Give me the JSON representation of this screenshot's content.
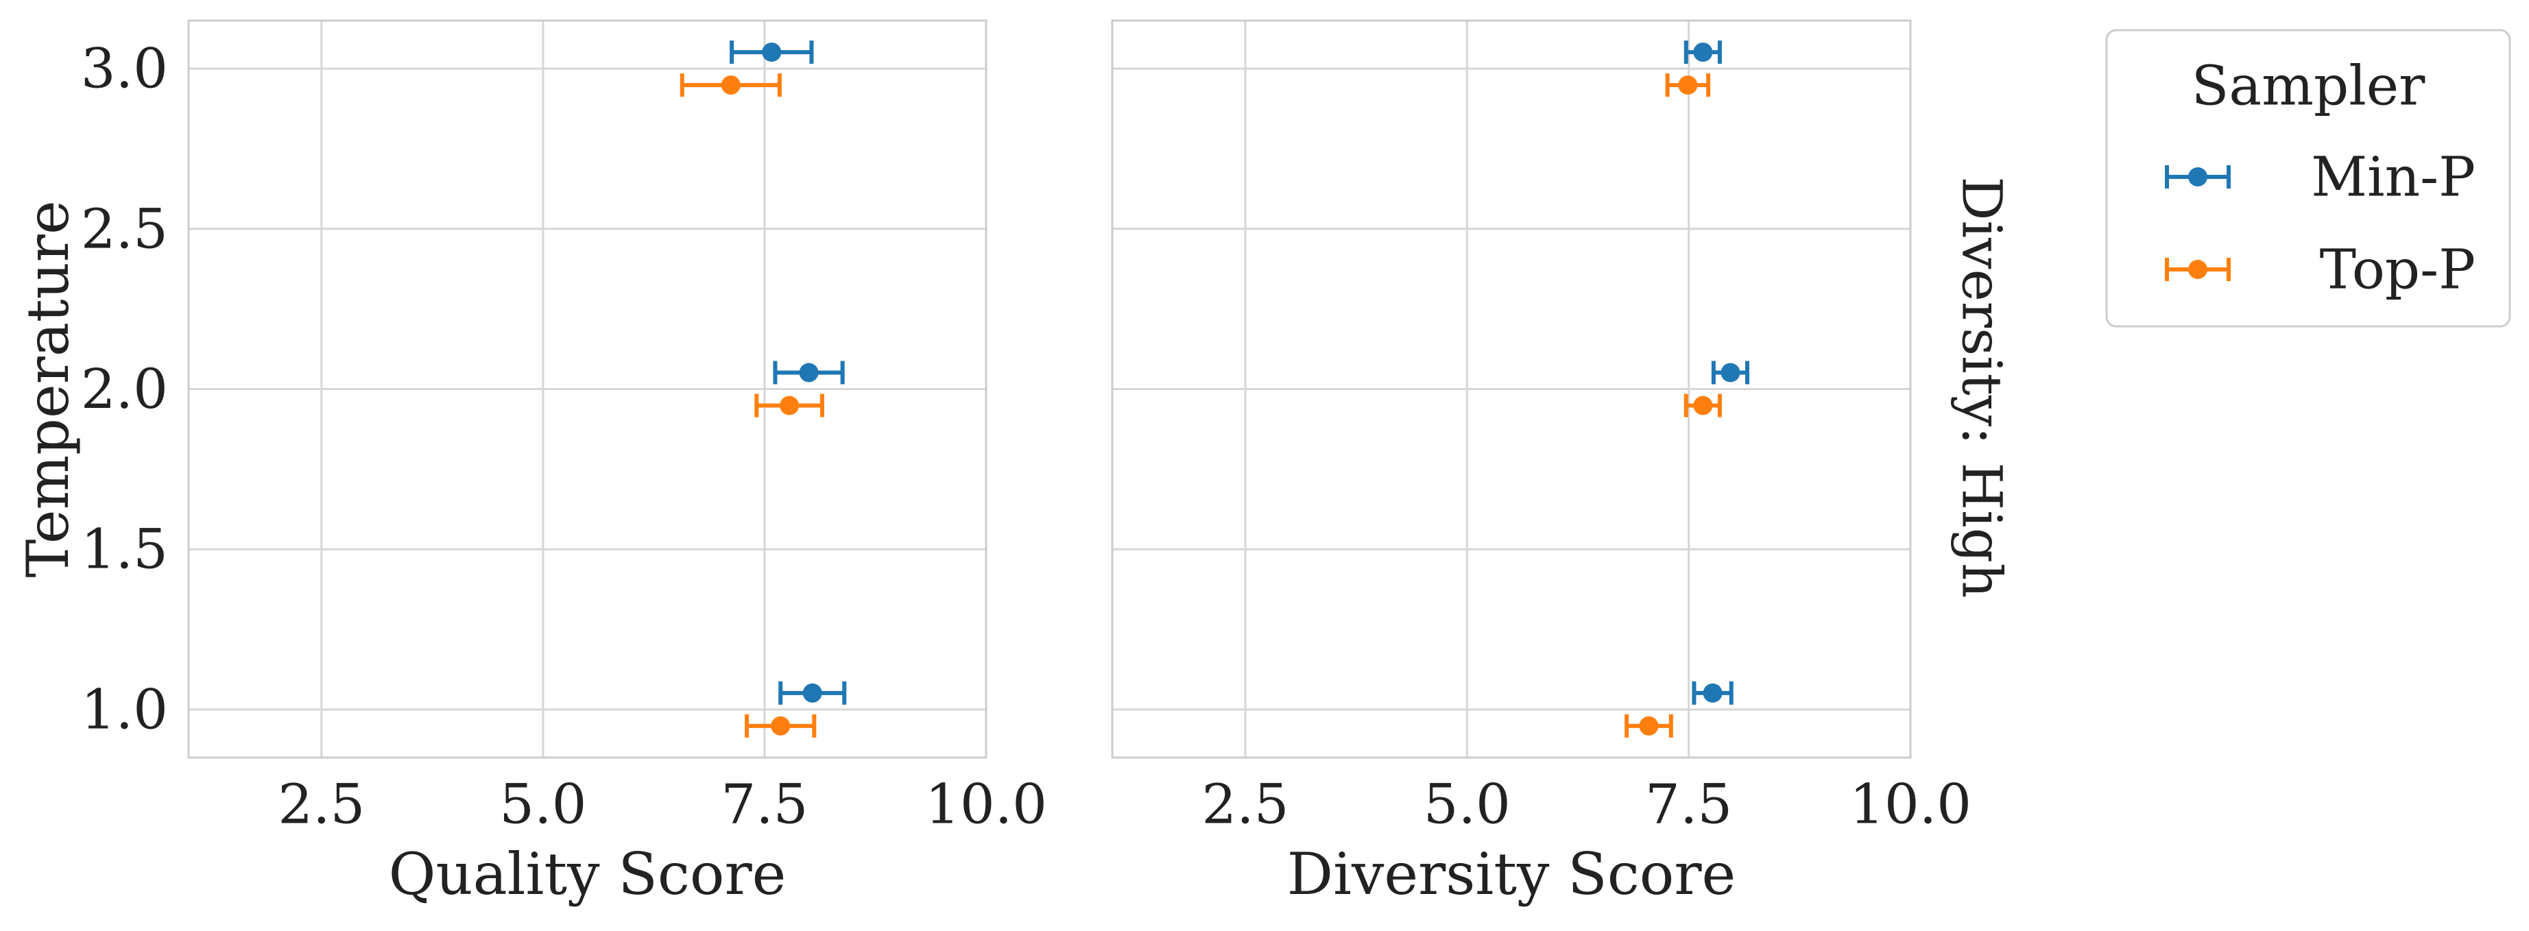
{
  "chart_data": [
    {
      "type": "scatter",
      "panel": "left",
      "xlabel": "Quality Score",
      "ylabel": "Temperature",
      "xlim": [
        1.0,
        10.0
      ],
      "ylim": [
        0.85,
        3.15
      ],
      "xticks": [
        2.5,
        5.0,
        7.5,
        10.0
      ],
      "xtick_labels": [
        "2.5",
        "5.0",
        "7.5",
        "10.0"
      ],
      "yticks": [
        1.0,
        1.5,
        2.0,
        2.5,
        3.0
      ],
      "ytick_labels": [
        "1.0",
        "1.5",
        "2.0",
        "2.5",
        "3.0"
      ],
      "grid": true,
      "series": [
        {
          "name": "Min-P",
          "color": "#1f77b4",
          "points": [
            {
              "y": 3.0,
              "x": 7.58,
              "err": 0.45
            },
            {
              "y": 2.0,
              "x": 8.0,
              "err": 0.38
            },
            {
              "y": 1.0,
              "x": 8.04,
              "err": 0.36
            }
          ]
        },
        {
          "name": "Top-P",
          "color": "#ff7f0e",
          "points": [
            {
              "y": 3.0,
              "x": 7.12,
              "err": 0.55
            },
            {
              "y": 2.0,
              "x": 7.78,
              "err": 0.37
            },
            {
              "y": 1.0,
              "x": 7.68,
              "err": 0.38
            }
          ]
        }
      ]
    },
    {
      "type": "scatter",
      "panel": "right",
      "xlabel": "Diversity Score",
      "ylabel": "",
      "facet_label": "Diversity: High",
      "xlim": [
        1.0,
        10.0
      ],
      "ylim": [
        0.85,
        3.15
      ],
      "xticks": [
        2.5,
        5.0,
        7.5,
        10.0
      ],
      "xtick_labels": [
        "2.5",
        "5.0",
        "7.5",
        "10.0"
      ],
      "yticks": [
        1.0,
        1.5,
        2.0,
        2.5,
        3.0
      ],
      "grid": true,
      "series": [
        {
          "name": "Min-P",
          "color": "#1f77b4",
          "points": [
            {
              "y": 3.0,
              "x": 7.66,
              "err": 0.19
            },
            {
              "y": 2.0,
              "x": 7.97,
              "err": 0.19
            },
            {
              "y": 1.0,
              "x": 7.77,
              "err": 0.21
            }
          ]
        },
        {
          "name": "Top-P",
          "color": "#ff7f0e",
          "points": [
            {
              "y": 3.0,
              "x": 7.49,
              "err": 0.23
            },
            {
              "y": 2.0,
              "x": 7.66,
              "err": 0.19
            },
            {
              "y": 1.0,
              "x": 7.05,
              "err": 0.25
            }
          ]
        }
      ]
    }
  ],
  "legend": {
    "title": "Sampler",
    "entries": [
      {
        "label": "Min-P",
        "color": "#1f77b4"
      },
      {
        "label": "Top-P",
        "color": "#ff7f0e"
      }
    ],
    "placement": "outside-right"
  }
}
